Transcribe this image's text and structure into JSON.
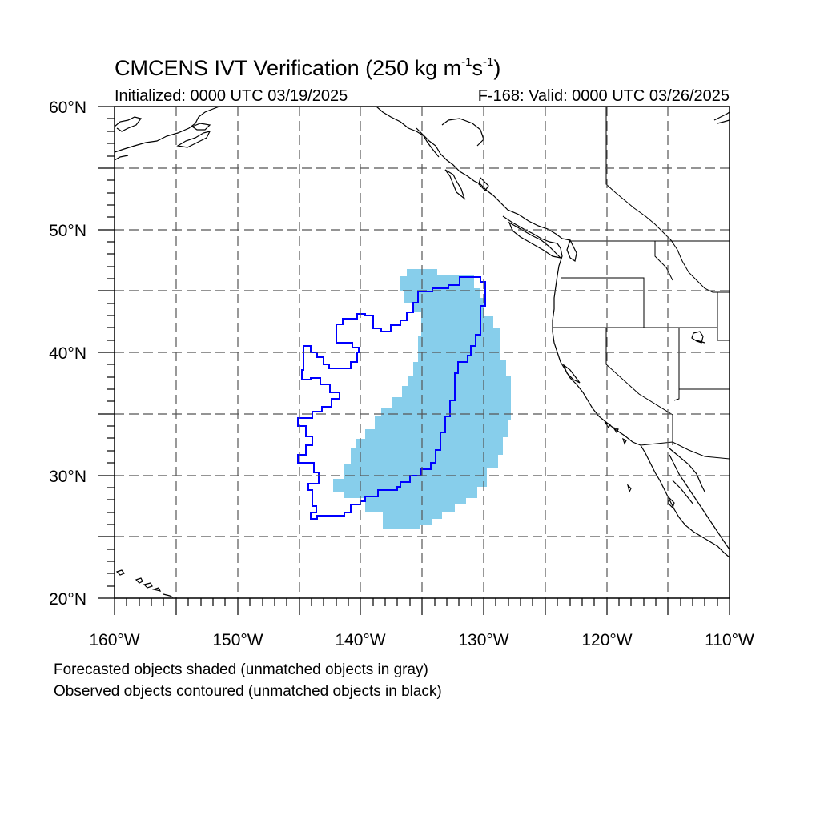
{
  "title": {
    "main": "CMCENS IVT Verification (250 kg m",
    "sup1": "-1",
    "mid": "s",
    "sup2": "-1",
    "end": ")"
  },
  "initialized": "Initialized: 0000 UTC 03/19/2025",
  "valid": "F-168: Valid: 0000 UTC 03/26/2025",
  "lat_labels": [
    "60°N",
    "50°N",
    "40°N",
    "30°N",
    "20°N"
  ],
  "lon_labels": [
    "160°W",
    "150°W",
    "140°W",
    "130°W",
    "120°W",
    "110°W"
  ],
  "notes": [
    "Forecasted objects shaded (unmatched objects in gray)",
    "Observed objects contoured (unmatched objects in black)"
  ],
  "colors": {
    "forecast_fill": "#87ceeb",
    "observed_contour": "#0000ff",
    "coastline": "#000000",
    "grid": "#555555"
  },
  "map": {
    "lon_range": [
      -160,
      -110
    ],
    "lat_range": [
      20,
      60
    ],
    "grid_lon_step": 5,
    "grid_lat_step": 5,
    "grid_style": "dashed"
  }
}
